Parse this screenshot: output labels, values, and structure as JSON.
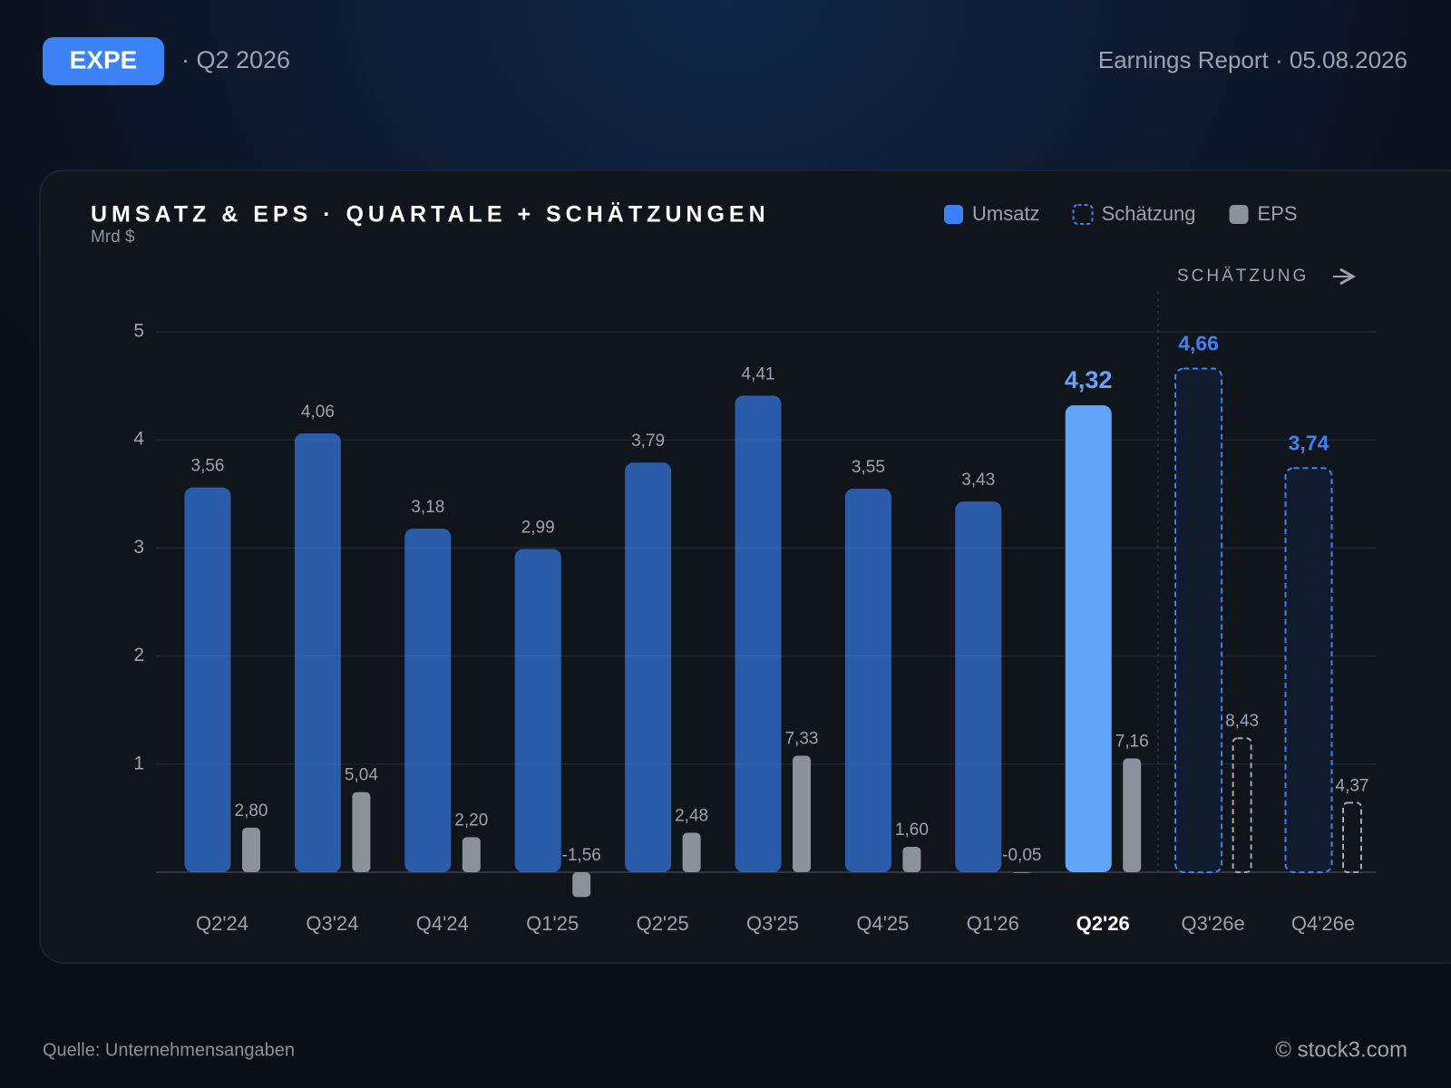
{
  "header": {
    "ticker": "EXPE",
    "period": "· Q2 2026",
    "report": "Earnings Report · 05.08.2026"
  },
  "chart_data": {
    "type": "bar",
    "title": "UMSATZ & EPS · QUARTALE + SCHÄTZUNGEN",
    "subtitle": "Mrd $",
    "annotation": "SCHÄTZUNG",
    "categories": [
      "Q2'24",
      "Q3'24",
      "Q4'24",
      "Q1'25",
      "Q2'25",
      "Q3'25",
      "Q4'25",
      "Q1'26",
      "Q2'26",
      "Q3'26e",
      "Q4'26e"
    ],
    "series": [
      {
        "name": "Umsatz",
        "color": "#3b82f6",
        "values": [
          3.56,
          4.06,
          3.18,
          2.99,
          3.79,
          4.41,
          3.55,
          3.43,
          4.32,
          null,
          null
        ],
        "value_labels": [
          "3,56",
          "4,06",
          "3,18",
          "2,99",
          "3,79",
          "4,41",
          "3,55",
          "3,43",
          "4,32",
          null,
          null
        ]
      },
      {
        "name": "Schätzung",
        "color": "#3b82f6",
        "dashed": true,
        "values": [
          null,
          null,
          null,
          null,
          null,
          null,
          null,
          null,
          null,
          4.66,
          3.74
        ],
        "value_labels": [
          null,
          null,
          null,
          null,
          null,
          null,
          null,
          null,
          null,
          "4,66",
          "3,74"
        ]
      },
      {
        "name": "EPS",
        "color": "#8b929c",
        "axis": "y2",
        "values": [
          2.8,
          5.04,
          2.2,
          -1.56,
          2.48,
          7.33,
          1.6,
          -0.05,
          7.16,
          8.43,
          4.37
        ],
        "value_labels": [
          "2,80",
          "5,04",
          "2,20",
          "-1,56",
          "2,48",
          "7,33",
          "1,60",
          "-0,05",
          "7,16",
          "8,43",
          "4,37"
        ]
      }
    ],
    "highlight_index": 8,
    "highlight_color": "#60a5fa",
    "ylim": [
      0,
      5
    ],
    "yticks": [
      1,
      2,
      3,
      4,
      5
    ],
    "y2lim": [
      0,
      34
    ],
    "grid": true,
    "legend": "top-right"
  },
  "footer": {
    "source": "Quelle: Unternehmensangaben",
    "credit": "© stock3.com"
  }
}
